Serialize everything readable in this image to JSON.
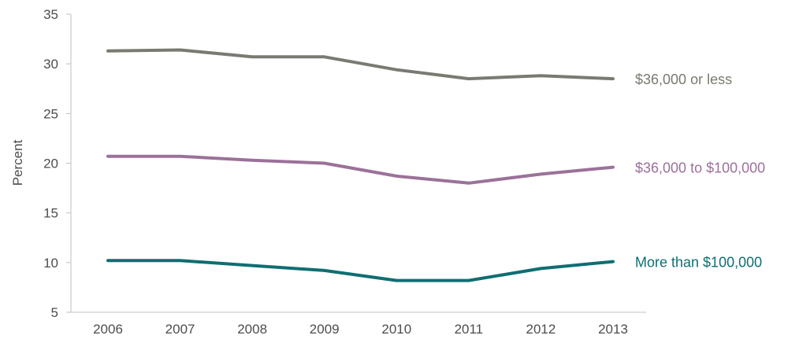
{
  "chart_data": {
    "type": "line",
    "title": "",
    "xlabel": "",
    "ylabel": "Percent",
    "categories": [
      "2006",
      "2007",
      "2008",
      "2009",
      "2010",
      "2011",
      "2012",
      "2013"
    ],
    "ylim": [
      5,
      35
    ],
    "yticks": [
      5,
      10,
      15,
      20,
      25,
      30,
      35
    ],
    "grid": false,
    "legend": "inline labels at right end of each line",
    "series": [
      {
        "name": "$36,000 or less",
        "color": "#7a7a72",
        "values": [
          31.3,
          31.4,
          30.7,
          30.7,
          29.4,
          28.5,
          28.8,
          28.5
        ]
      },
      {
        "name": "$36,000 to $100,000",
        "color": "#9b7199",
        "values": [
          20.7,
          20.7,
          20.3,
          20.0,
          18.7,
          18.0,
          18.9,
          19.6
        ]
      },
      {
        "name": "More than $100,000",
        "color": "#0e6e72",
        "values": [
          10.2,
          10.2,
          9.7,
          9.2,
          8.2,
          8.2,
          9.4,
          10.1
        ]
      }
    ]
  }
}
